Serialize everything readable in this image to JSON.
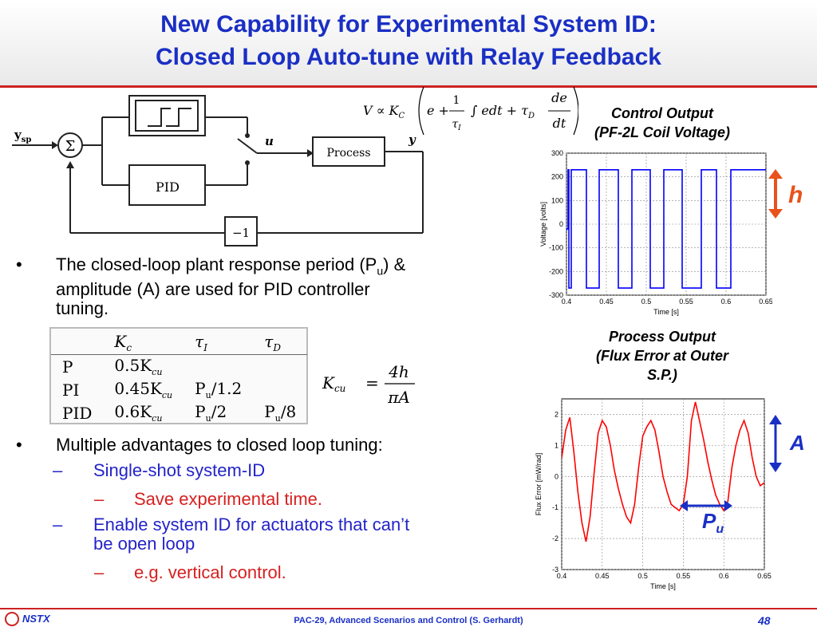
{
  "title": {
    "line1": "New Capability for Experimental System ID:",
    "line2": "Closed Loop Auto-tune with Relay Feedback"
  },
  "block_diagram": {
    "input_label": "y",
    "input_sub": "sp",
    "sum_symbol": "Σ",
    "pid_label": "PID",
    "process_label": "Process",
    "u_label": "u",
    "y_label": "y",
    "gain_label": "−1"
  },
  "equation": {
    "lhs": "V ∝ K",
    "lhs_sub": "C",
    "term_e": "e +",
    "frac1_num": "1",
    "frac1_den": "τ",
    "frac1_den_sub": "I",
    "integral": "∫ edt + τ",
    "tau_sub": "D",
    "frac2_num": "de",
    "frac2_den": "dt"
  },
  "bullets": {
    "b1_part1": "The closed-loop plant response period (P",
    "b1_sub": "u",
    "b1_part2": ") &",
    "b1_line2": "amplitude (A) are used for PID controller",
    "b1_line3": "tuning.",
    "b2": "Multiple advantages to closed loop tuning:",
    "s1": "Single-shot system-ID",
    "s1a": "Save experimental time.",
    "s2_line1": "Enable system ID for actuators that can’t",
    "s2_line2": "be open loop",
    "s2a": "e.g. vertical control.",
    "bullet_mark": "•",
    "dash_mark": "–"
  },
  "tuning_table": {
    "headers": [
      "K",
      "τ",
      "τ"
    ],
    "header_subs": [
      "c",
      "I",
      "D"
    ],
    "rows": [
      [
        "P",
        "0.5K",
        "",
        ""
      ],
      [
        "PI",
        "0.45K",
        "P",
        "/1.2"
      ],
      [
        "PID",
        "0.6K",
        "P",
        "/2"
      ]
    ],
    "row_kcu_sub": "cu",
    "row_pu_sub": "u",
    "pid_tau_d_main": "P",
    "pid_tau_d_rest": "/8"
  },
  "kcu_formula": {
    "lhs": "K",
    "lhs_sub": "cu",
    "eq": "=",
    "num": "4h",
    "den": "πA"
  },
  "chart_captions": {
    "control_line1": "Control Output",
    "control_line2": "(PF-2L Coil Voltage)",
    "process_line1": "Process Output",
    "process_line2": "(Flux Error at Outer",
    "process_line3": "S.P.)"
  },
  "annotations": {
    "h": "h",
    "A": "A",
    "Pu_main": "P",
    "Pu_sub": "u",
    "accent_orange": "#e8521c",
    "accent_blue": "#1a2fc4"
  },
  "chart_data": [
    {
      "type": "line",
      "xlabel": "Time [s]",
      "ylabel": "Voltage [volts]",
      "xlim": [
        0.4,
        0.65
      ],
      "ylim": [
        -300,
        300
      ],
      "xticks": [
        "0.4",
        "0.45",
        "0.5",
        "0.55",
        "0.6",
        "0.65"
      ],
      "yticks": [
        "300",
        "200",
        "100",
        "0",
        "-100",
        "-200",
        "-300"
      ],
      "grid": true,
      "series": [
        {
          "color": "#0000ff",
          "x": [
            0.395,
            0.4,
            0.4,
            0.402,
            0.402,
            0.403,
            0.403,
            0.406,
            0.406,
            0.425,
            0.425,
            0.426,
            0.426,
            0.441,
            0.441,
            0.444,
            0.444,
            0.465,
            0.465,
            0.467,
            0.467,
            0.482,
            0.482,
            0.484,
            0.484,
            0.505,
            0.505,
            0.507,
            0.507,
            0.522,
            0.522,
            0.524,
            0.524,
            0.545,
            0.545,
            0.547,
            0.547,
            0.569,
            0.569,
            0.571,
            0.571,
            0.588,
            0.588,
            0.59,
            0.59,
            0.606,
            0.606,
            0.608,
            0.608,
            0.65
          ],
          "y": [
            -25,
            -25,
            -20,
            -20,
            230,
            230,
            -270,
            -270,
            230,
            230,
            -270,
            -270,
            -270,
            -270,
            230,
            230,
            230,
            230,
            -270,
            -270,
            -270,
            -270,
            230,
            230,
            230,
            230,
            -270,
            -270,
            -270,
            -270,
            230,
            230,
            230,
            230,
            -270,
            -270,
            -270,
            -270,
            230,
            230,
            230,
            230,
            -270,
            -270,
            -270,
            -270,
            230,
            230,
            230,
            230
          ]
        }
      ]
    },
    {
      "type": "line",
      "xlabel": "Time [s]",
      "ylabel": "Flux Error [mW/rad]",
      "xlim": [
        0.4,
        0.65
      ],
      "ylim": [
        -3,
        2.5
      ],
      "xticks": [
        "0.4",
        "0.45",
        "0.5",
        "0.55",
        "0.6",
        "0.65"
      ],
      "yticks": [
        "2",
        "1",
        "0",
        "-1",
        "-2",
        "-3"
      ],
      "grid": true,
      "series": [
        {
          "color": "#ff0000",
          "x": [
            0.395,
            0.4,
            0.405,
            0.41,
            0.415,
            0.42,
            0.425,
            0.43,
            0.435,
            0.44,
            0.445,
            0.45,
            0.455,
            0.46,
            0.465,
            0.47,
            0.475,
            0.48,
            0.485,
            0.49,
            0.495,
            0.5,
            0.505,
            0.51,
            0.515,
            0.52,
            0.525,
            0.53,
            0.535,
            0.54,
            0.545,
            0.55,
            0.555,
            0.56,
            0.565,
            0.57,
            0.575,
            0.58,
            0.585,
            0.59,
            0.595,
            0.6,
            0.605,
            0.61,
            0.615,
            0.62,
            0.625,
            0.63,
            0.635,
            0.64,
            0.645,
            0.65
          ],
          "y": [
            0.5,
            0.6,
            1.5,
            1.9,
            0.8,
            -0.5,
            -1.5,
            -2.1,
            -1.3,
            0.1,
            1.4,
            1.8,
            1.6,
            1.0,
            0.2,
            -0.4,
            -0.9,
            -1.3,
            -1.5,
            -0.9,
            0.3,
            1.3,
            1.6,
            1.8,
            1.5,
            0.8,
            0.0,
            -0.5,
            -0.9,
            -1.0,
            -1.1,
            -0.9,
            0.0,
            1.8,
            2.4,
            1.8,
            1.2,
            0.5,
            -0.1,
            -0.6,
            -0.9,
            -1.1,
            -0.8,
            0.3,
            1.0,
            1.5,
            1.8,
            1.4,
            0.6,
            0.0,
            -0.3,
            -0.2
          ]
        }
      ]
    }
  ],
  "footer": {
    "logo_text": "NSTX",
    "center": "PAC-29, Advanced Scenarios and Control (S. Gerhardt)",
    "page": "48"
  }
}
